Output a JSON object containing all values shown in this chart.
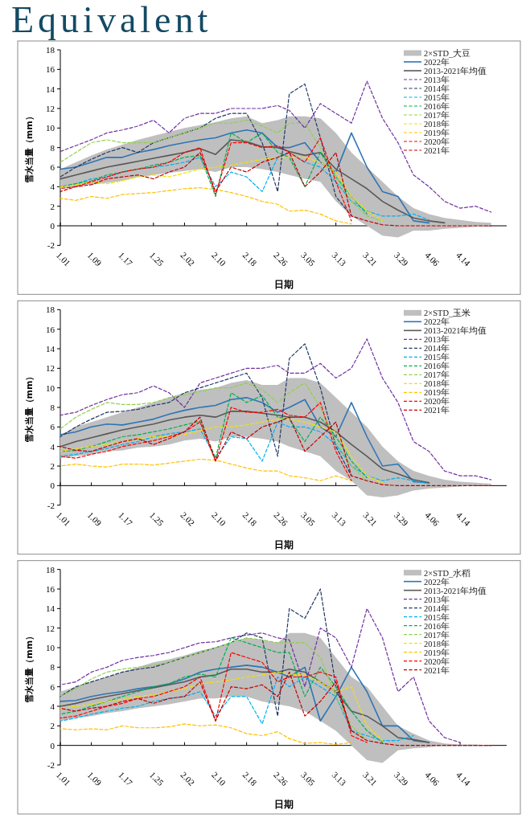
{
  "chart_data": [
    {
      "type": "line",
      "title": "Equivalent",
      "xlabel": "日期",
      "ylabel": "雪水当量（mm）",
      "legend": "top right",
      "annotations": [
        "2×STD_大豆"
      ],
      "xlim": [
        "--01-01",
        "--04-26"
      ],
      "ylim": [
        -2,
        18
      ],
      "yticks": [
        -2,
        0,
        2,
        4,
        6,
        8,
        10,
        12,
        14,
        16,
        18
      ],
      "xticks": [
        {
          "value": "--01-01",
          "label": "1.01"
        },
        {
          "value": "--01-09",
          "label": "1.09"
        },
        {
          "value": "--01-17",
          "label": "1.17"
        },
        {
          "value": "--01-25",
          "label": "1.25"
        },
        {
          "value": "--02-02",
          "label": "2.02"
        },
        {
          "value": "--02-10",
          "label": "2.10"
        },
        {
          "value": "--02-18",
          "label": "2.18"
        },
        {
          "value": "--02-26",
          "label": "2.26"
        },
        {
          "value": "--03-05",
          "label": "3.05"
        },
        {
          "value": "--03-13",
          "label": "3.13"
        },
        {
          "value": "--03-21",
          "label": "3.21"
        },
        {
          "value": "--03-29",
          "label": "3.29"
        },
        {
          "value": "--04-06",
          "label": "4.06"
        },
        {
          "value": "--04-14",
          "label": "4.14"
        }
      ],
      "x": [
        "--01-01",
        "--01-05",
        "--01-09",
        "--01-13",
        "--01-17",
        "--01-21",
        "--01-25",
        "--01-29",
        "--02-02",
        "--02-06",
        "--02-10",
        "--02-14",
        "--02-18",
        "--02-22",
        "--02-26",
        "--03-01",
        "--03-05",
        "--03-09",
        "--03-13",
        "--03-17",
        "--03-21",
        "--03-25",
        "--03-29",
        "--04-02",
        "--04-06",
        "--04-10",
        "--04-14",
        "--04-18",
        "--04-22"
      ],
      "series": [
        {
          "name": "2022年",
          "line_style": "solid",
          "color": "#2e75b6",
          "values": [
            5.8,
            6.0,
            6.5,
            7.0,
            7.0,
            7.5,
            7.8,
            8.2,
            8.5,
            8.8,
            9.0,
            9.5,
            9.8,
            9.5,
            8.0,
            8.0,
            8.5,
            6.5,
            5.5,
            9.5,
            6.0,
            3.5,
            3.0,
            0.5,
            0.3,
            null,
            null,
            null,
            null
          ]
        },
        {
          "name": "2013-2021年均值",
          "line_style": "solid",
          "color": "#595959",
          "values": [
            4.8,
            5.2,
            5.6,
            6.0,
            6.3,
            6.6,
            6.9,
            7.2,
            7.5,
            7.9,
            7.3,
            8.8,
            8.6,
            8.1,
            8.0,
            7.6,
            7.2,
            7.5,
            5.8,
            4.8,
            3.8,
            2.5,
            1.6,
            0.8,
            0.5,
            0.3,
            null,
            null,
            null
          ],
          "upper": [
            5.8,
            6.5,
            7.2,
            7.8,
            8.3,
            8.8,
            9.2,
            9.6,
            10.0,
            10.3,
            10.6,
            11.0,
            11.2,
            10.5,
            10.8,
            11.2,
            11.2,
            11.0,
            9.5,
            7.5,
            6.0,
            4.5,
            3.0,
            1.8,
            1.2,
            0.8,
            0.6,
            0.4,
            0.3
          ],
          "lower": [
            3.8,
            4.0,
            4.2,
            4.4,
            4.6,
            5.0,
            5.2,
            5.4,
            5.6,
            5.8,
            5.5,
            6.0,
            6.0,
            5.8,
            5.5,
            5.2,
            4.8,
            4.5,
            2.5,
            1.0,
            0.0,
            -1.0,
            -1.2,
            -0.5,
            -0.5,
            -0.3,
            -0.2,
            -0.1,
            0
          ]
        },
        {
          "name": "2013年",
          "line_style": "dashed",
          "color": "#7030a0",
          "values": [
            7.6,
            8.2,
            8.8,
            9.5,
            9.8,
            10.2,
            10.8,
            9.5,
            11.0,
            11.5,
            11.5,
            12.0,
            12.0,
            12.0,
            12.3,
            11.8,
            10.0,
            12.5,
            11.5,
            10.5,
            14.8,
            11.0,
            8.5,
            5.2,
            4.0,
            2.5,
            1.8,
            2.0,
            1.4
          ]
        },
        {
          "name": "2014年",
          "line_style": "dashed",
          "color": "#203864",
          "values": [
            5.0,
            6.0,
            6.8,
            7.5,
            8.0,
            7.5,
            8.5,
            9.0,
            9.5,
            10.0,
            11.0,
            11.5,
            11.5,
            8.5,
            3.5,
            13.5,
            14.5,
            9.0,
            3.0,
            1.0,
            null,
            null,
            null,
            null,
            null,
            null,
            null,
            null,
            null
          ]
        },
        {
          "name": "2015年",
          "line_style": "dashed",
          "color": "#00b0f0",
          "values": [
            4.0,
            4.3,
            4.8,
            5.0,
            5.5,
            5.8,
            6.0,
            6.2,
            6.5,
            7.0,
            4.0,
            5.5,
            5.0,
            3.5,
            7.0,
            7.5,
            6.5,
            6.0,
            4.5,
            2.5,
            1.5,
            1.0,
            1.0,
            1.2,
            0.6,
            null,
            null,
            null,
            null
          ]
        },
        {
          "name": "2016年",
          "line_style": "dashed",
          "color": "#00b050",
          "values": [
            4.0,
            4.3,
            4.6,
            5.2,
            5.5,
            5.8,
            6.2,
            6.5,
            7.0,
            7.2,
            3.0,
            9.5,
            8.5,
            9.5,
            7.5,
            7.0,
            4.0,
            7.5,
            5.0,
            3.0,
            1.2,
            null,
            null,
            null,
            null,
            null,
            null,
            null,
            null
          ]
        },
        {
          "name": "2017年",
          "line_style": "dashed",
          "color": "#92d050",
          "values": [
            6.5,
            7.5,
            8.5,
            8.8,
            8.5,
            8.5,
            8.5,
            9.0,
            9.5,
            10.0,
            10.5,
            10.5,
            10.8,
            10.2,
            9.5,
            10.5,
            10.5,
            8.0,
            5.0,
            2.5,
            1.0,
            0.5,
            null,
            null,
            null,
            null,
            null,
            null,
            null
          ]
        },
        {
          "name": "2018年",
          "line_style": "dashed",
          "color": "#f2e200",
          "values": [
            4.0,
            4.2,
            4.5,
            4.3,
            4.6,
            5.0,
            5.2,
            5.0,
            5.4,
            5.8,
            6.0,
            6.2,
            6.5,
            6.8,
            7.0,
            7.0,
            7.0,
            6.5,
            5.5,
            3.0,
            1.5,
            0.5,
            null,
            null,
            null,
            null,
            null,
            null,
            null
          ]
        },
        {
          "name": "2019年",
          "line_style": "dashed",
          "color": "#ffc000",
          "values": [
            2.8,
            2.6,
            3.0,
            2.8,
            3.2,
            3.3,
            3.4,
            3.6,
            3.8,
            3.9,
            3.7,
            3.4,
            3.0,
            2.5,
            2.2,
            1.5,
            1.6,
            1.2,
            0.5,
            0.2,
            null,
            null,
            null,
            null,
            null,
            null,
            null,
            null,
            null
          ]
        },
        {
          "name": "2020年",
          "line_style": "dashed",
          "color": "#ff0000",
          "values": [
            3.8,
            4.0,
            4.5,
            5.0,
            5.5,
            5.8,
            6.0,
            6.5,
            7.5,
            8.0,
            3.2,
            8.5,
            8.5,
            8.0,
            8.2,
            7.5,
            6.5,
            9.0,
            4.5,
            0.5,
            null,
            null,
            null,
            null,
            null,
            null,
            null,
            null,
            null
          ]
        },
        {
          "name": "2021年",
          "line_style": "dashed",
          "color": "#c00000",
          "values": [
            3.5,
            4.0,
            4.2,
            4.8,
            5.0,
            5.2,
            4.8,
            5.5,
            6.0,
            7.5,
            3.5,
            6.0,
            5.5,
            6.5,
            7.0,
            7.5,
            4.0,
            5.5,
            7.5,
            1.0,
            0.5,
            0.1,
            0,
            0,
            0,
            0,
            0,
            0,
            0
          ]
        }
      ]
    },
    {
      "type": "line",
      "xlabel": "日期",
      "ylabel": "雪水当量（mm）",
      "legend": "top right",
      "annotations": [
        "2×STD_玉米"
      ],
      "xlim": [
        "--01-01",
        "--04-26"
      ],
      "ylim": [
        -2,
        18
      ],
      "yticks": [
        -2,
        0,
        2,
        4,
        6,
        8,
        10,
        12,
        14,
        16,
        18
      ],
      "xticks": [
        {
          "value": "--01-01",
          "label": "1.01"
        },
        {
          "value": "--01-09",
          "label": "1.09"
        },
        {
          "value": "--01-17",
          "label": "1.17"
        },
        {
          "value": "--01-25",
          "label": "1.25"
        },
        {
          "value": "--02-02",
          "label": "2.02"
        },
        {
          "value": "--02-10",
          "label": "2.10"
        },
        {
          "value": "--02-18",
          "label": "2.18"
        },
        {
          "value": "--02-26",
          "label": "2.26"
        },
        {
          "value": "--03-05",
          "label": "3.05"
        },
        {
          "value": "--03-13",
          "label": "3.13"
        },
        {
          "value": "--03-21",
          "label": "3.21"
        },
        {
          "value": "--03-29",
          "label": "3.29"
        },
        {
          "value": "--04-06",
          "label": "4.06"
        },
        {
          "value": "--04-14",
          "label": "4.14"
        }
      ],
      "x": [
        "--01-01",
        "--01-05",
        "--01-09",
        "--01-13",
        "--01-17",
        "--01-21",
        "--01-25",
        "--01-29",
        "--02-02",
        "--02-06",
        "--02-10",
        "--02-14",
        "--02-18",
        "--02-22",
        "--02-26",
        "--03-01",
        "--03-05",
        "--03-09",
        "--03-13",
        "--03-17",
        "--03-21",
        "--03-25",
        "--03-29",
        "--04-02",
        "--04-06",
        "--04-10",
        "--04-14",
        "--04-18",
        "--04-22"
      ],
      "series": [
        {
          "name": "2022年",
          "line_style": "solid",
          "color": "#2e75b6",
          "values": [
            5.2,
            5.5,
            6.0,
            6.3,
            6.2,
            6.5,
            6.8,
            7.3,
            7.7,
            8.0,
            8.2,
            8.8,
            9.0,
            8.5,
            7.5,
            8.0,
            8.8,
            6.0,
            5.0,
            8.5,
            5.0,
            2.0,
            2.2,
            0.4,
            0.3,
            null,
            null,
            null,
            null
          ]
        },
        {
          "name": "2013-2021年均值",
          "line_style": "solid",
          "color": "#595959",
          "values": [
            4.0,
            4.5,
            4.9,
            5.3,
            5.7,
            6.0,
            6.3,
            6.7,
            7.0,
            7.2,
            7.0,
            7.6,
            7.6,
            7.4,
            7.2,
            7.0,
            7.0,
            6.5,
            5.5,
            4.2,
            3.0,
            1.7,
            1.2,
            0.6,
            0.3,
            null,
            null,
            null,
            null
          ],
          "upper": [
            5.2,
            6.0,
            6.5,
            7.0,
            7.5,
            8.0,
            8.5,
            9.0,
            9.5,
            9.8,
            10.0,
            10.5,
            10.8,
            10.3,
            10.3,
            11.0,
            11.0,
            10.5,
            9.0,
            7.5,
            6.0,
            4.0,
            2.5,
            1.5,
            1.0,
            0.6,
            0.4,
            0.3,
            0.2
          ],
          "lower": [
            2.8,
            3.0,
            3.2,
            3.5,
            3.6,
            3.9,
            4.0,
            4.2,
            4.6,
            4.8,
            4.5,
            5.0,
            5.0,
            4.8,
            4.5,
            4.0,
            3.5,
            3.0,
            1.5,
            0.5,
            -1.0,
            -1.2,
            -1.0,
            -0.5,
            -0.3,
            -0.2,
            -0.1,
            0,
            0
          ]
        },
        {
          "name": "2013年",
          "line_style": "dashed",
          "color": "#7030a0",
          "values": [
            7.2,
            7.5,
            8.2,
            8.8,
            9.3,
            9.5,
            10.2,
            9.5,
            8.0,
            10.5,
            11.0,
            11.5,
            12.0,
            12.0,
            12.3,
            11.5,
            11.5,
            12.5,
            11.0,
            12.0,
            15.0,
            11.0,
            8.5,
            4.5,
            3.5,
            1.5,
            1.0,
            1.0,
            0.6
          ]
        },
        {
          "name": "2014年",
          "line_style": "dashed",
          "color": "#203864",
          "values": [
            5.0,
            6.0,
            6.8,
            7.5,
            7.6,
            7.8,
            8.2,
            8.5,
            9.5,
            10.0,
            10.5,
            11.0,
            11.5,
            9.0,
            3.0,
            13.0,
            14.5,
            10.0,
            4.0,
            1.0,
            null,
            null,
            null,
            null,
            null,
            null,
            null,
            null,
            null
          ]
        },
        {
          "name": "2015年",
          "line_style": "dashed",
          "color": "#00b0f0",
          "values": [
            3.0,
            3.2,
            3.5,
            3.8,
            4.2,
            4.5,
            5.0,
            5.3,
            5.5,
            5.8,
            2.8,
            5.0,
            4.8,
            2.5,
            6.5,
            6.0,
            6.0,
            5.5,
            4.2,
            2.0,
            1.0,
            0.5,
            0.8,
            0.5,
            0.2,
            null,
            null,
            null,
            null
          ]
        },
        {
          "name": "2016年",
          "line_style": "dashed",
          "color": "#00b050",
          "values": [
            3.5,
            3.6,
            4.0,
            4.5,
            5.0,
            5.2,
            5.5,
            5.8,
            6.2,
            6.6,
            2.8,
            9.5,
            8.5,
            9.2,
            7.0,
            6.8,
            4.5,
            7.0,
            5.0,
            2.5,
            0.8,
            null,
            null,
            null,
            null,
            null,
            null,
            null,
            null
          ]
        },
        {
          "name": "2017年",
          "line_style": "dashed",
          "color": "#92d050",
          "values": [
            5.8,
            7.0,
            7.8,
            8.5,
            8.3,
            8.3,
            8.5,
            9.0,
            9.3,
            9.6,
            10.0,
            10.0,
            10.5,
            9.8,
            8.5,
            9.5,
            10.5,
            8.0,
            4.5,
            2.0,
            0.5,
            null,
            null,
            null,
            null,
            null,
            null,
            null,
            null
          ]
        },
        {
          "name": "2018年",
          "line_style": "dashed",
          "color": "#f2e200",
          "values": [
            3.5,
            3.8,
            4.0,
            4.2,
            4.5,
            4.8,
            5.0,
            5.0,
            5.2,
            5.6,
            6.0,
            6.0,
            6.2,
            6.5,
            6.8,
            6.8,
            6.5,
            6.0,
            5.5,
            3.0,
            1.0,
            0.3,
            null,
            null,
            null,
            null,
            null,
            null,
            null
          ]
        },
        {
          "name": "2019年",
          "line_style": "dashed",
          "color": "#ffc000",
          "values": [
            2.0,
            2.2,
            2.0,
            1.9,
            2.2,
            2.2,
            2.1,
            2.3,
            2.5,
            2.7,
            2.6,
            2.2,
            1.8,
            1.5,
            1.5,
            1.0,
            0.8,
            0.5,
            1.0,
            0.5,
            null,
            null,
            null,
            null,
            null,
            null,
            null,
            null,
            null
          ]
        },
        {
          "name": "2020年",
          "line_style": "dashed",
          "color": "#ff0000",
          "values": [
            3.0,
            2.8,
            3.2,
            3.5,
            4.0,
            4.3,
            4.6,
            5.0,
            5.5,
            6.5,
            2.5,
            8.0,
            7.5,
            7.5,
            7.8,
            7.2,
            7.0,
            8.5,
            3.5,
            0.5,
            null,
            null,
            null,
            null,
            null,
            null,
            null,
            null,
            null
          ]
        },
        {
          "name": "2021年",
          "line_style": "dashed",
          "color": "#c00000",
          "values": [
            4.0,
            3.6,
            3.5,
            4.0,
            4.5,
            4.8,
            4.2,
            4.8,
            5.5,
            7.0,
            2.5,
            5.5,
            4.8,
            6.0,
            6.5,
            7.0,
            3.5,
            5.0,
            6.5,
            1.0,
            0.5,
            0.1,
            0,
            0,
            0,
            0,
            0,
            0,
            0
          ]
        }
      ]
    },
    {
      "type": "line",
      "xlabel": "日期",
      "ylabel": "雪水当量（mm）",
      "legend": "top right",
      "annotations": [
        "2×STD_水稻"
      ],
      "xlim": [
        "--01-01",
        "--04-26"
      ],
      "ylim": [
        -2,
        18
      ],
      "yticks": [
        -2,
        0,
        2,
        4,
        6,
        8,
        10,
        12,
        14,
        16,
        18
      ],
      "xticks": [
        {
          "value": "--01-01",
          "label": "1.01"
        },
        {
          "value": "--01-09",
          "label": "1.09"
        },
        {
          "value": "--01-17",
          "label": "1.17"
        },
        {
          "value": "--01-25",
          "label": "1.25"
        },
        {
          "value": "--02-02",
          "label": "2.02"
        },
        {
          "value": "--02-10",
          "label": "2.10"
        },
        {
          "value": "--02-18",
          "label": "2.18"
        },
        {
          "value": "--02-26",
          "label": "2.26"
        },
        {
          "value": "--03-05",
          "label": "3.05"
        },
        {
          "value": "--03-13",
          "label": "3.13"
        },
        {
          "value": "--03-21",
          "label": "3.21"
        },
        {
          "value": "--03-29",
          "label": "3.29"
        },
        {
          "value": "--04-06",
          "label": "4.06"
        },
        {
          "value": "--04-14",
          "label": "4.14"
        }
      ],
      "x": [
        "--01-01",
        "--01-05",
        "--01-09",
        "--01-13",
        "--01-17",
        "--01-21",
        "--01-25",
        "--01-29",
        "--02-02",
        "--02-06",
        "--02-10",
        "--02-14",
        "--02-18",
        "--02-22",
        "--02-26",
        "--03-01",
        "--03-05",
        "--03-09",
        "--03-13",
        "--03-17",
        "--03-21",
        "--03-25",
        "--03-29",
        "--04-02",
        "--04-06",
        "--04-10",
        "--04-14",
        "--04-18",
        "--04-22"
      ],
      "series": [
        {
          "name": "2022年",
          "line_style": "solid",
          "color": "#2e75b6",
          "values": [
            4.5,
            4.6,
            5.0,
            5.3,
            5.5,
            5.8,
            6.0,
            6.3,
            6.8,
            7.5,
            7.8,
            8.0,
            8.2,
            8.0,
            7.5,
            7.0,
            8.0,
            2.5,
            5.0,
            8.0,
            5.5,
            2.0,
            2.0,
            0.5,
            0.3,
            null,
            null,
            null,
            null
          ]
        },
        {
          "name": "2013-2021年均值",
          "line_style": "solid",
          "color": "#595959",
          "values": [
            4.0,
            4.3,
            4.7,
            5.0,
            5.3,
            5.6,
            5.9,
            6.2,
            6.5,
            7.0,
            7.2,
            7.8,
            7.8,
            7.5,
            7.5,
            7.8,
            7.5,
            6.5,
            5.5,
            3.5,
            3.0,
            2.0,
            0.8,
            0.6,
            0.3,
            null,
            null,
            null,
            null
          ],
          "upper": [
            5.5,
            6.0,
            6.5,
            7.0,
            7.5,
            8.0,
            8.5,
            8.8,
            9.2,
            9.7,
            10.0,
            10.5,
            11.0,
            10.8,
            10.5,
            11.5,
            11.5,
            11.0,
            9.0,
            7.0,
            6.0,
            4.0,
            2.0,
            1.2,
            0.5,
            0.2,
            0.1,
            0.1,
            0
          ],
          "lower": [
            2.5,
            2.8,
            3.0,
            3.3,
            3.5,
            3.8,
            4.0,
            4.2,
            4.5,
            4.8,
            4.8,
            5.0,
            5.0,
            4.5,
            4.2,
            4.0,
            3.5,
            2.5,
            1.5,
            0,
            -1.5,
            -1.8,
            -0.5,
            -0.3,
            -0.2,
            0,
            0,
            0,
            0
          ]
        },
        {
          "name": "2013年",
          "line_style": "dashed",
          "color": "#7030a0",
          "values": [
            6.2,
            6.5,
            7.5,
            8.0,
            8.7,
            9.0,
            9.2,
            9.5,
            10.0,
            10.5,
            10.6,
            11.0,
            11.3,
            11.5,
            11.0,
            10.8,
            6.0,
            12.0,
            11.0,
            8.0,
            14.0,
            11.0,
            5.5,
            7.0,
            2.5,
            0.8,
            0.3,
            null,
            null
          ]
        },
        {
          "name": "2014年",
          "line_style": "dashed",
          "color": "#203864",
          "values": [
            5.0,
            6.0,
            6.5,
            7.0,
            7.5,
            7.8,
            8.0,
            8.5,
            9.0,
            9.5,
            10.0,
            10.5,
            11.5,
            11.0,
            3.0,
            14.0,
            13.0,
            16.0,
            6.0,
            1.5,
            null,
            null,
            null,
            null,
            null,
            null,
            null,
            null,
            null
          ]
        },
        {
          "name": "2015年",
          "line_style": "dashed",
          "color": "#00b0f0",
          "values": [
            2.5,
            2.8,
            3.2,
            3.5,
            3.8,
            4.0,
            4.5,
            4.8,
            5.0,
            5.5,
            3.0,
            5.0,
            5.0,
            2.2,
            7.0,
            6.0,
            7.0,
            6.0,
            5.0,
            1.5,
            1.0,
            0.5,
            0.5,
            1.0,
            null,
            null,
            null,
            null,
            null
          ]
        },
        {
          "name": "2016年",
          "line_style": "dashed",
          "color": "#00b050",
          "values": [
            3.2,
            3.5,
            4.0,
            4.5,
            5.0,
            5.5,
            6.0,
            6.3,
            7.0,
            7.3,
            7.0,
            11.0,
            10.5,
            10.0,
            9.5,
            9.5,
            5.0,
            8.0,
            6.0,
            3.5,
            1.5,
            0.3,
            null,
            null,
            null,
            null,
            null,
            null,
            null
          ]
        },
        {
          "name": "2017年",
          "line_style": "dashed",
          "color": "#92d050",
          "values": [
            5.0,
            5.8,
            6.8,
            7.5,
            7.8,
            8.0,
            8.2,
            8.5,
            9.0,
            9.5,
            10.0,
            10.5,
            11.0,
            10.8,
            10.5,
            10.5,
            10.5,
            9.0,
            5.0,
            2.0,
            0.5,
            null,
            null,
            null,
            null,
            null,
            null,
            null,
            null
          ]
        },
        {
          "name": "2018年",
          "line_style": "dashed",
          "color": "#f2e200",
          "values": [
            3.8,
            4.0,
            4.2,
            4.5,
            4.7,
            5.0,
            5.2,
            5.5,
            5.8,
            6.3,
            6.5,
            6.7,
            7.0,
            7.2,
            7.5,
            7.3,
            7.2,
            6.5,
            5.5,
            6.0,
            2.0,
            0.5,
            null,
            null,
            null,
            null,
            null,
            null,
            null
          ]
        },
        {
          "name": "2019年",
          "line_style": "dashed",
          "color": "#ffc000",
          "values": [
            1.7,
            1.6,
            1.7,
            1.6,
            2.0,
            1.8,
            1.8,
            1.9,
            2.2,
            2.0,
            2.1,
            1.8,
            1.2,
            1.0,
            1.4,
            0.7,
            0.2,
            0.3,
            0.1,
            0.3,
            null,
            null,
            null,
            null,
            null,
            null,
            null,
            null,
            null
          ]
        },
        {
          "name": "2020年",
          "line_style": "dashed",
          "color": "#ff0000",
          "values": [
            2.8,
            3.0,
            3.5,
            4.0,
            4.3,
            4.8,
            5.0,
            5.5,
            6.0,
            7.0,
            2.5,
            9.5,
            9.0,
            8.5,
            6.5,
            7.0,
            7.0,
            7.5,
            7.0,
            1.0,
            0.3,
            null,
            null,
            null,
            null,
            null,
            null,
            null,
            null
          ]
        },
        {
          "name": "2021年",
          "line_style": "dashed",
          "color": "#c00000",
          "values": [
            3.8,
            3.5,
            3.8,
            4.0,
            4.5,
            4.8,
            4.3,
            4.8,
            5.0,
            6.5,
            2.5,
            6.0,
            5.8,
            6.2,
            5.0,
            7.5,
            3.0,
            4.5,
            6.5,
            1.5,
            0.5,
            0.2,
            0,
            0,
            0,
            0,
            0,
            0,
            0
          ]
        }
      ]
    }
  ]
}
